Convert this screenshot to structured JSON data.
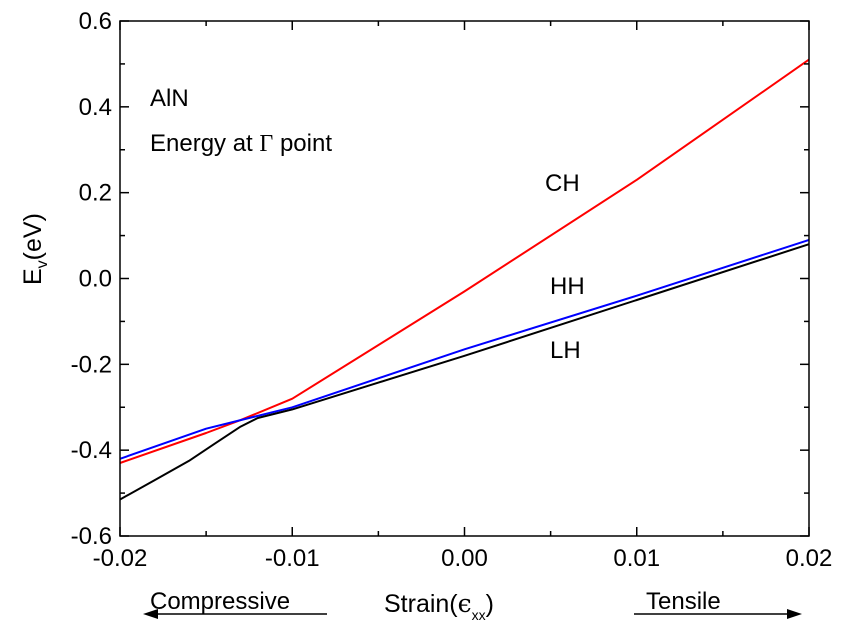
{
  "chart_data": {
    "type": "line",
    "xlabel": "Strain(",
    "xlabel_symbol": "ϵ",
    "xlabel_sub": "xx",
    "xlabel_close": ")",
    "ylabel": "E",
    "ylabel_sub": "v",
    "ylabel_unit": "(eV)",
    "xlim": [
      -0.02,
      0.02
    ],
    "ylim": [
      -0.6,
      0.6
    ],
    "x_ticks": [
      -0.02,
      -0.01,
      0.0,
      0.01,
      0.02
    ],
    "x_tick_labels": [
      "-0.02",
      "-0.01",
      "0.00",
      "0.01",
      "0.02"
    ],
    "y_ticks": [
      -0.6,
      -0.4,
      -0.2,
      0.0,
      0.2,
      0.4,
      0.6
    ],
    "y_tick_labels": [
      "-0.6",
      "-0.4",
      "-0.2",
      "0.0",
      "0.2",
      "0.4",
      "0.6"
    ],
    "grid": false,
    "legend": "none",
    "series": [
      {
        "name": "CH",
        "color": "#ff0000",
        "x": [
          -0.02,
          -0.015,
          -0.013,
          -0.01,
          0.0,
          0.01,
          0.02
        ],
        "y": [
          -0.43,
          -0.36,
          -0.33,
          -0.28,
          -0.03,
          0.23,
          0.51
        ]
      },
      {
        "name": "HH",
        "color": "#0000ff",
        "x": [
          -0.02,
          -0.015,
          -0.013,
          -0.01,
          0.0,
          0.01,
          0.02
        ],
        "y": [
          -0.42,
          -0.35,
          -0.33,
          -0.3,
          -0.165,
          -0.04,
          0.09
        ]
      },
      {
        "name": "LH",
        "color": "#000000",
        "x": [
          -0.02,
          -0.018,
          -0.016,
          -0.0145,
          -0.013,
          -0.012,
          -0.01,
          0.0,
          0.01,
          0.02
        ],
        "y": [
          -0.515,
          -0.47,
          -0.425,
          -0.385,
          -0.345,
          -0.325,
          -0.305,
          -0.18,
          -0.05,
          0.08
        ]
      }
    ],
    "annotations": {
      "material": "AlN",
      "energy_text": "Energy at",
      "gamma_symbol": "Γ",
      "point_text": "point",
      "ch_label": "CH",
      "hh_label": "HH",
      "lh_label": "LH",
      "compressive": "Compressive",
      "tensile": "Tensile"
    }
  }
}
